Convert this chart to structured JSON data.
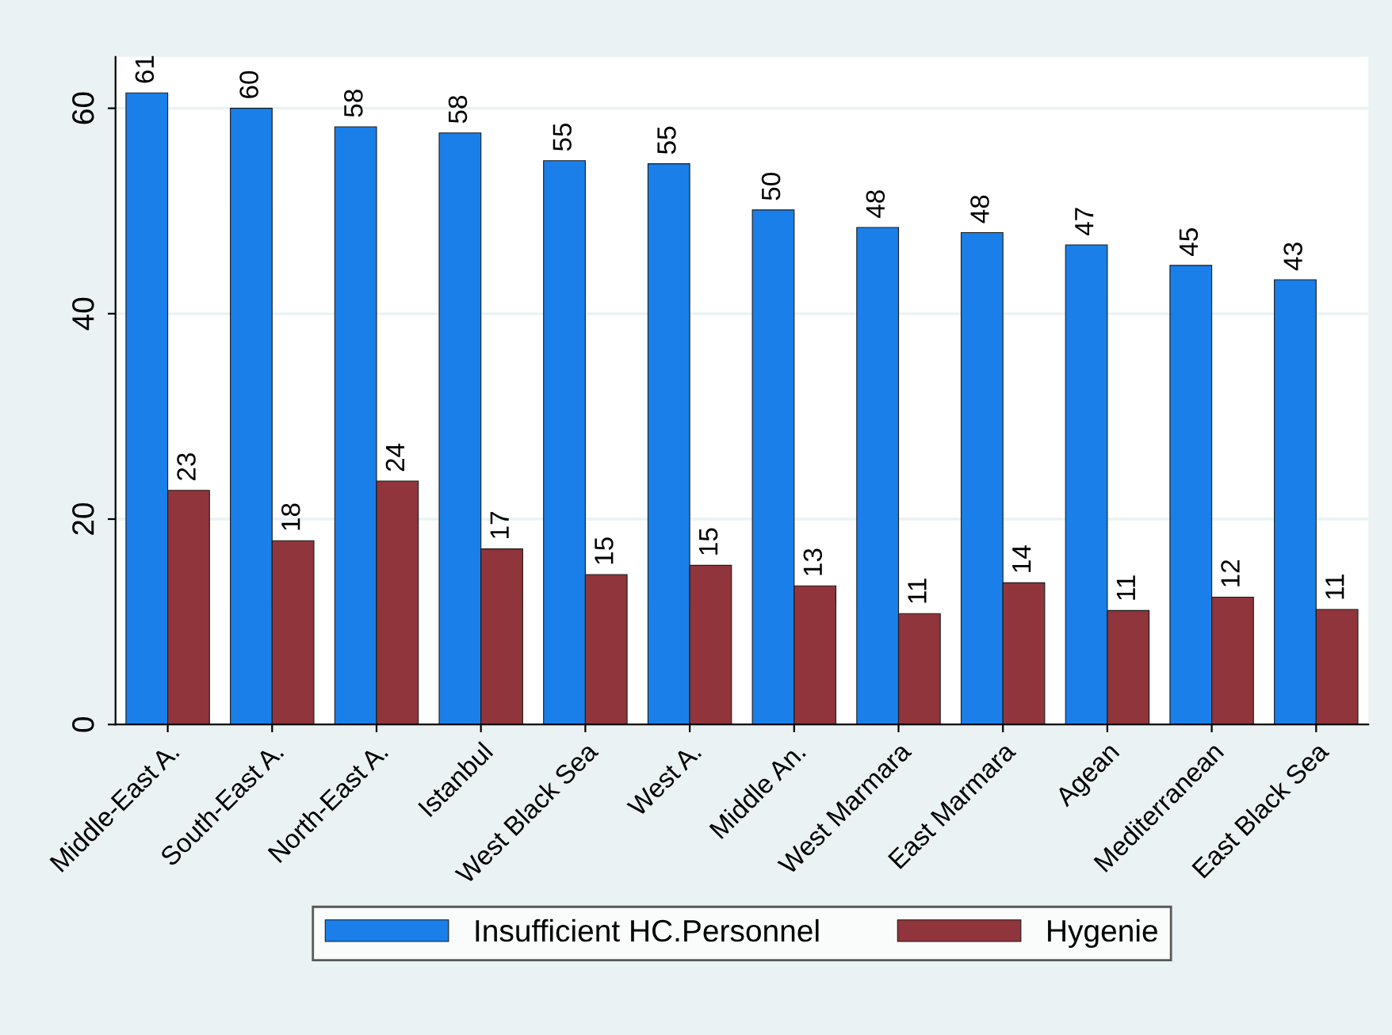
{
  "chart_data": {
    "type": "bar",
    "categories": [
      "Middle-East A.",
      "South-East A.",
      "North-East A.",
      "Istanbul",
      "West Black Sea",
      "West A.",
      "Middle An.",
      "West Marmara",
      "East Marmara",
      "Agean",
      "Mediterranean",
      "East Black Sea"
    ],
    "series": [
      {
        "name": "Insufficient HC.Personnel",
        "color": "#1a7fe8",
        "values": [
          61.5,
          60,
          58.2,
          57.6,
          54.9,
          54.6,
          50.1,
          48.4,
          47.9,
          46.7,
          44.7,
          43.3
        ],
        "value_labels": [
          "61",
          "60",
          "58",
          "58",
          "55",
          "55",
          "50",
          "48",
          "48",
          "47",
          "45",
          "43"
        ]
      },
      {
        "name": "Hygenie",
        "color": "#90353b",
        "values": [
          22.8,
          17.9,
          23.7,
          17.1,
          14.6,
          15.5,
          13.5,
          10.8,
          13.8,
          11.1,
          12.4,
          11.2
        ],
        "value_labels": [
          "23",
          "18",
          "24",
          "17",
          "15",
          "15",
          "13",
          "11",
          "14",
          "11",
          "12",
          "11"
        ]
      }
    ],
    "ylim": [
      0,
      65
    ],
    "yticks": [
      0,
      20,
      40,
      60
    ],
    "grid": "y",
    "legend": "bottom"
  }
}
